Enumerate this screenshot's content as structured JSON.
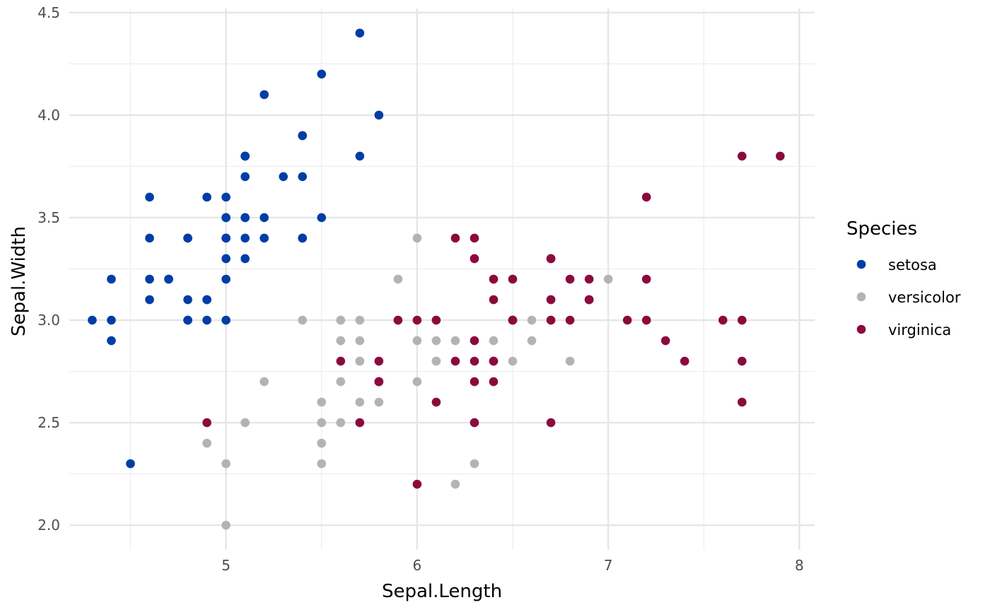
{
  "chart_data": {
    "type": "scatter",
    "title": "",
    "xlabel": "Sepal.Length",
    "ylabel": "Sepal.Width",
    "xlim": [
      4.18,
      8.08
    ],
    "ylim": [
      1.88,
      4.52
    ],
    "x_ticks": [
      "5",
      "6",
      "7",
      "8"
    ],
    "y_ticks": [
      "2.0",
      "2.5",
      "3.0",
      "3.5",
      "4.0",
      "4.5"
    ],
    "grid": true,
    "legend": {
      "title": "Species",
      "position": "right"
    },
    "series": [
      {
        "name": "setosa",
        "color": "#003DA5",
        "points": [
          [
            5.1,
            3.5
          ],
          [
            4.9,
            3.0
          ],
          [
            4.7,
            3.2
          ],
          [
            4.6,
            3.1
          ],
          [
            5.0,
            3.6
          ],
          [
            5.4,
            3.9
          ],
          [
            4.6,
            3.4
          ],
          [
            5.0,
            3.4
          ],
          [
            4.4,
            2.9
          ],
          [
            4.9,
            3.1
          ],
          [
            5.4,
            3.7
          ],
          [
            4.8,
            3.4
          ],
          [
            4.8,
            3.0
          ],
          [
            4.3,
            3.0
          ],
          [
            5.8,
            4.0
          ],
          [
            5.7,
            4.4
          ],
          [
            5.4,
            3.9
          ],
          [
            5.1,
            3.5
          ],
          [
            5.7,
            3.8
          ],
          [
            5.1,
            3.8
          ],
          [
            5.4,
            3.4
          ],
          [
            5.1,
            3.7
          ],
          [
            4.6,
            3.6
          ],
          [
            5.1,
            3.3
          ],
          [
            4.8,
            3.4
          ],
          [
            5.0,
            3.0
          ],
          [
            5.0,
            3.4
          ],
          [
            5.2,
            3.5
          ],
          [
            5.2,
            3.4
          ],
          [
            4.7,
            3.2
          ],
          [
            4.8,
            3.1
          ],
          [
            5.4,
            3.4
          ],
          [
            5.2,
            4.1
          ],
          [
            5.5,
            4.2
          ],
          [
            4.9,
            3.1
          ],
          [
            5.0,
            3.2
          ],
          [
            5.5,
            3.5
          ],
          [
            4.9,
            3.6
          ],
          [
            4.4,
            3.0
          ],
          [
            5.1,
            3.4
          ],
          [
            5.0,
            3.5
          ],
          [
            4.5,
            2.3
          ],
          [
            4.4,
            3.2
          ],
          [
            5.0,
            3.5
          ],
          [
            5.1,
            3.8
          ],
          [
            4.8,
            3.0
          ],
          [
            5.1,
            3.8
          ],
          [
            4.6,
            3.2
          ],
          [
            5.3,
            3.7
          ],
          [
            5.0,
            3.3
          ]
        ]
      },
      {
        "name": "versicolor",
        "color": "#B3B3B3",
        "points": [
          [
            7.0,
            3.2
          ],
          [
            6.4,
            3.2
          ],
          [
            6.9,
            3.1
          ],
          [
            5.5,
            2.3
          ],
          [
            6.5,
            2.8
          ],
          [
            5.7,
            2.8
          ],
          [
            6.3,
            3.3
          ],
          [
            4.9,
            2.4
          ],
          [
            6.6,
            2.9
          ],
          [
            5.2,
            2.7
          ],
          [
            5.0,
            2.0
          ],
          [
            5.9,
            3.0
          ],
          [
            6.0,
            2.2
          ],
          [
            6.1,
            2.9
          ],
          [
            5.6,
            2.9
          ],
          [
            6.7,
            3.1
          ],
          [
            5.6,
            3.0
          ],
          [
            5.8,
            2.7
          ],
          [
            6.2,
            2.2
          ],
          [
            5.6,
            2.5
          ],
          [
            5.9,
            3.2
          ],
          [
            6.1,
            2.8
          ],
          [
            6.3,
            2.5
          ],
          [
            6.1,
            2.8
          ],
          [
            6.4,
            2.9
          ],
          [
            6.6,
            3.0
          ],
          [
            6.8,
            2.8
          ],
          [
            6.7,
            3.0
          ],
          [
            6.0,
            2.9
          ],
          [
            5.7,
            2.6
          ],
          [
            5.5,
            2.4
          ],
          [
            5.5,
            2.4
          ],
          [
            5.8,
            2.7
          ],
          [
            6.0,
            2.7
          ],
          [
            5.4,
            3.0
          ],
          [
            6.0,
            3.4
          ],
          [
            6.7,
            3.1
          ],
          [
            6.3,
            2.3
          ],
          [
            5.6,
            3.0
          ],
          [
            5.5,
            2.5
          ],
          [
            5.5,
            2.6
          ],
          [
            6.1,
            3.0
          ],
          [
            5.8,
            2.6
          ],
          [
            5.0,
            2.3
          ],
          [
            5.6,
            2.7
          ],
          [
            5.7,
            3.0
          ],
          [
            5.7,
            2.9
          ],
          [
            6.2,
            2.9
          ],
          [
            5.1,
            2.5
          ],
          [
            5.7,
            2.8
          ]
        ]
      },
      {
        "name": "virginica",
        "color": "#8B0A3E",
        "points": [
          [
            6.3,
            3.3
          ],
          [
            5.8,
            2.7
          ],
          [
            7.1,
            3.0
          ],
          [
            6.3,
            2.9
          ],
          [
            6.5,
            3.0
          ],
          [
            7.6,
            3.0
          ],
          [
            4.9,
            2.5
          ],
          [
            7.3,
            2.9
          ],
          [
            6.7,
            2.5
          ],
          [
            7.2,
            3.6
          ],
          [
            6.5,
            3.2
          ],
          [
            6.4,
            2.7
          ],
          [
            6.8,
            3.0
          ],
          [
            5.7,
            2.5
          ],
          [
            5.8,
            2.8
          ],
          [
            6.4,
            3.2
          ],
          [
            6.5,
            3.0
          ],
          [
            7.7,
            3.8
          ],
          [
            7.7,
            2.6
          ],
          [
            6.0,
            2.2
          ],
          [
            6.9,
            3.2
          ],
          [
            5.6,
            2.8
          ],
          [
            7.7,
            2.8
          ],
          [
            6.3,
            2.7
          ],
          [
            6.7,
            3.3
          ],
          [
            7.2,
            3.2
          ],
          [
            6.2,
            2.8
          ],
          [
            6.1,
            3.0
          ],
          [
            6.4,
            2.8
          ],
          [
            7.2,
            3.0
          ],
          [
            7.4,
            2.8
          ],
          [
            7.9,
            3.8
          ],
          [
            6.4,
            2.8
          ],
          [
            6.3,
            2.8
          ],
          [
            6.1,
            2.6
          ],
          [
            7.7,
            3.0
          ],
          [
            6.3,
            3.4
          ],
          [
            6.4,
            3.1
          ],
          [
            6.0,
            3.0
          ],
          [
            6.9,
            3.1
          ],
          [
            6.7,
            3.1
          ],
          [
            6.9,
            3.1
          ],
          [
            5.8,
            2.7
          ],
          [
            6.8,
            3.2
          ],
          [
            6.7,
            3.3
          ],
          [
            6.7,
            3.0
          ],
          [
            6.3,
            2.5
          ],
          [
            6.5,
            3.0
          ],
          [
            6.2,
            3.4
          ],
          [
            5.9,
            3.0
          ]
        ]
      }
    ]
  }
}
